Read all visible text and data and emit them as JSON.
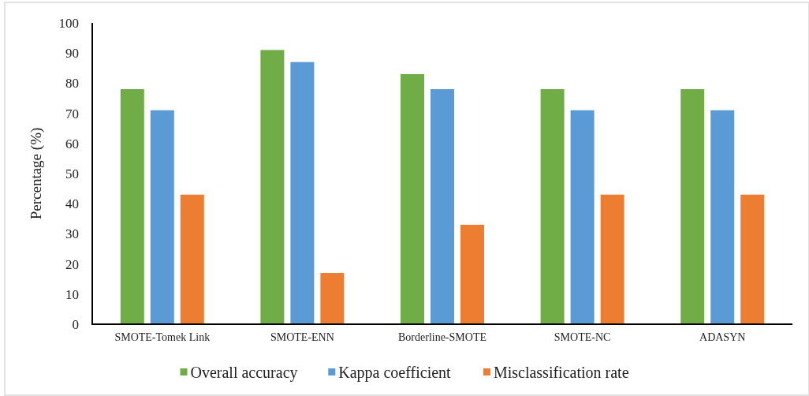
{
  "chart_data": {
    "type": "bar",
    "ylabel": "Percentage (%)",
    "categories": [
      "SMOTE-Tomek Link",
      "SMOTE-ENN",
      "Borderline-SMOTE",
      "SMOTE-NC",
      "ADASYN"
    ],
    "series": [
      {
        "name": "Overall accuracy",
        "color": "#70ad47",
        "values": [
          78,
          91,
          83,
          78,
          78
        ]
      },
      {
        "name": "Kappa coefficient",
        "color": "#5b9bd5",
        "values": [
          71,
          87,
          78,
          71,
          71
        ]
      },
      {
        "name": "Misclassification rate",
        "color": "#ed7d31",
        "values": [
          43,
          17,
          33,
          43,
          43
        ]
      }
    ],
    "ylim": [
      0,
      100
    ],
    "yticks": [
      0,
      10,
      20,
      30,
      40,
      50,
      60,
      70,
      80,
      90,
      100
    ],
    "grid": false,
    "legend": "bottom"
  }
}
